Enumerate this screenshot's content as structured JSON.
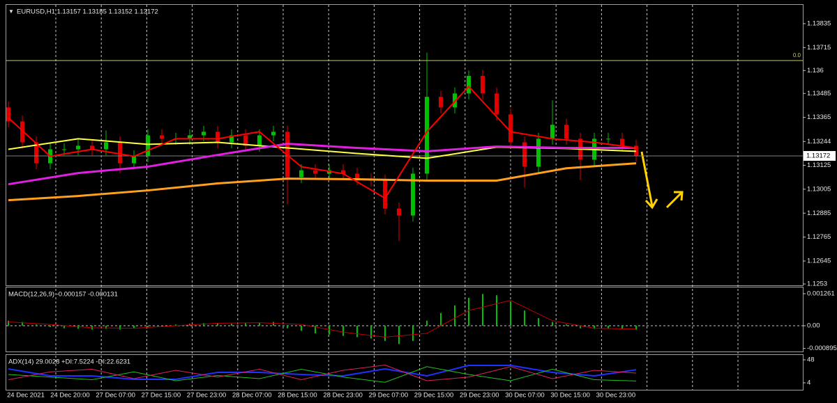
{
  "chart_data": [
    {
      "type": "candlestick",
      "title": "EURUSD,H1  1.13157 1.13185 1.13152 1.13172",
      "up_color": "#00c000",
      "down_color": "#e00000",
      "open": [
        1.13415,
        1.13345,
        1.1324,
        1.13135,
        1.13205,
        1.13205,
        1.13223,
        1.13205,
        1.1324,
        1.13135,
        1.1317,
        1.13275,
        1.13258,
        1.13258,
        1.13275,
        1.13293,
        1.1324,
        1.13275,
        1.13223,
        1.13275,
        1.13293,
        1.13065,
        1.131,
        1.13083,
        1.131,
        1.13083,
        1.13055,
        1.13048,
        1.12908,
        1.12873,
        1.13083,
        1.13468,
        1.13415,
        1.13485,
        1.13573,
        1.13485,
        1.1338,
        1.1324,
        1.13118,
        1.13258,
        1.13328,
        1.13258,
        1.13153,
        1.13258,
        1.13258,
        1.13223
      ],
      "high": [
        1.13445,
        1.13375,
        1.1327,
        1.13235,
        1.13235,
        1.13253,
        1.13253,
        1.133,
        1.1327,
        1.132,
        1.13305,
        1.13305,
        1.13288,
        1.13305,
        1.13323,
        1.13323,
        1.13305,
        1.13305,
        1.13305,
        1.13323,
        1.13323,
        1.1313,
        1.1313,
        1.1313,
        1.1313,
        1.13113,
        1.13085,
        1.13078,
        1.12938,
        1.13113,
        1.1369,
        1.13498,
        1.13515,
        1.136,
        1.13603,
        1.13515,
        1.1341,
        1.1327,
        1.13288,
        1.1345,
        1.13358,
        1.13288,
        1.13288,
        1.13288,
        1.13288,
        1.13253
      ],
      "low": [
        1.13315,
        1.1321,
        1.13105,
        1.13105,
        1.13175,
        1.13175,
        1.13175,
        1.13175,
        1.13085,
        1.13105,
        1.1314,
        1.13228,
        1.13228,
        1.13228,
        1.13245,
        1.1321,
        1.1321,
        1.13193,
        1.13193,
        1.13245,
        1.1293,
        1.13035,
        1.13053,
        1.13053,
        1.13053,
        1.13025,
        1.13018,
        1.12878,
        1.12745,
        1.12843,
        1.13053,
        1.13385,
        1.13385,
        1.13455,
        1.13455,
        1.1335,
        1.1321,
        1.13013,
        1.13088,
        1.13228,
        1.13228,
        1.1305,
        1.13123,
        1.13228,
        1.13193,
        1.13142
      ],
      "close": [
        1.13345,
        1.1324,
        1.13135,
        1.13205,
        1.13205,
        1.13223,
        1.13205,
        1.1324,
        1.13135,
        1.1317,
        1.13275,
        1.13258,
        1.13258,
        1.13275,
        1.13293,
        1.1324,
        1.13275,
        1.13223,
        1.13275,
        1.13293,
        1.13065,
        1.131,
        1.13083,
        1.131,
        1.13083,
        1.13055,
        1.13048,
        1.12908,
        1.12873,
        1.13083,
        1.13468,
        1.13415,
        1.13485,
        1.13573,
        1.13485,
        1.1338,
        1.1324,
        1.13118,
        1.13258,
        1.13328,
        1.13258,
        1.13153,
        1.13258,
        1.13258,
        1.13223,
        1.13172
      ],
      "lines": [
        {
          "color": "#ffa020",
          "width": 3,
          "x": [
            0,
            5,
            10,
            15,
            20,
            25,
            30,
            35,
            40,
            45
          ],
          "values": [
            1.1295,
            1.12971,
            1.12999,
            1.13034,
            1.13058,
            1.13055,
            1.13048,
            1.13048,
            1.1311,
            1.13135
          ]
        },
        {
          "color": "#ffff40",
          "width": 2,
          "x": [
            0,
            5,
            10,
            15,
            20,
            25,
            30,
            35,
            40,
            45
          ],
          "values": [
            1.13205,
            1.13258,
            1.1323,
            1.1324,
            1.13212,
            1.13184,
            1.1316,
            1.13216,
            1.13209,
            1.13195
          ]
        },
        {
          "color": "#e020e0",
          "width": 3,
          "x": [
            0,
            5,
            10,
            15,
            20,
            25,
            30,
            35,
            40,
            45
          ],
          "values": [
            1.1303,
            1.13086,
            1.13118,
            1.13177,
            1.13233,
            1.13212,
            1.13195,
            1.13219,
            1.13212,
            1.13212
          ]
        },
        {
          "color": "#ff0000",
          "width": 2,
          "x": [
            0,
            3,
            6,
            9,
            12,
            15,
            18,
            21,
            24,
            27,
            30,
            33,
            36,
            39,
            42,
            45
          ],
          "values": [
            1.13363,
            1.1317,
            1.13205,
            1.1317,
            1.13258,
            1.13258,
            1.13293,
            1.13118,
            1.13083,
            1.1296,
            1.13293,
            1.1352,
            1.13293,
            1.13258,
            1.1324,
            1.13212
          ]
        }
      ],
      "levels": [
        {
          "value": 1.1365,
          "label": "0.0",
          "color": "#c8c870"
        }
      ],
      "last_price": 1.13172,
      "ylim": [
        1.12523,
        1.13929
      ],
      "yticks": [
        1.13835,
        1.13715,
        1.136,
        1.13485,
        1.13365,
        1.13244,
        1.13125,
        1.13005,
        1.12885,
        1.12765,
        1.12645,
        1.1253
      ],
      "x_labels": [
        "24 Dec 2021",
        "24 Dec 20:00",
        "27 Dec 07:00",
        "27 Dec 15:00",
        "27 Dec 23:00",
        "28 Dec 07:00",
        "28 Dec 15:00",
        "28 Dec 23:00",
        "29 Dec 07:00",
        "29 Dec 15:00",
        "29 Dec 23:00",
        "30 Dec 07:00",
        "30 Dec 15:00",
        "30 Dec 23:00"
      ]
    },
    {
      "type": "bar",
      "title": "MACD(12,26,9) -0.000157 -0.000131",
      "color": "#00c000",
      "values": [
        0.0002,
        0.00015,
        5e-05,
        -5e-05,
        -0.0001,
        -0.00012,
        -0.00015,
        -0.00012,
        -0.00015,
        -0.0001,
        -5e-05,
        2e-05,
        5e-05,
        8e-05,
        0.0001,
        0.0001,
        8e-05,
        0.0001,
        0.00012,
        0.00015,
        -0.0001,
        -0.0002,
        -0.0003,
        -0.00035,
        -0.0004,
        -0.00045,
        -0.0005,
        -0.0006,
        -0.00072,
        -0.0006,
        0.0002,
        0.0005,
        0.0008,
        0.0011,
        0.00125,
        0.0012,
        0.00095,
        0.0006,
        0.0003,
        0.00015,
        5e-05,
        -0.0001,
        -0.00012,
        -0.0001,
        -0.00012,
        -0.000157
      ],
      "lines": [
        {
          "color": "#c00000",
          "width": 1,
          "x": [
            0,
            3,
            6,
            9,
            12,
            15,
            18,
            21,
            24,
            27,
            30,
            33,
            36,
            39,
            42,
            45
          ],
          "values": [
            0.00015,
            5e-05,
            -8e-05,
            -0.0001,
            0.0,
            0.0001,
            0.00012,
            5e-05,
            -0.00025,
            -0.00045,
            -0.0003,
            0.0006,
            0.001,
            0.0002,
            -0.0001,
            -0.000131
          ]
        }
      ],
      "ylim": [
        -0.001014,
        0.001508
      ],
      "yticks": [
        0.001261,
        {
          "value": 0,
          "label": "0.00"
        },
        -0.000895
      ]
    },
    {
      "type": "line",
      "title": "ADX(14) 29.0028 +DI:7.5224 -DI:22.6231",
      "lines": [
        {
          "color": "#2030ff",
          "width": 2,
          "x": [
            0,
            3,
            6,
            9,
            12,
            15,
            18,
            21,
            24,
            27,
            30,
            33,
            36,
            39,
            42,
            45
          ],
          "values": [
            30.7,
            17.3,
            17.3,
            10.7,
            10.7,
            24,
            24,
            20,
            17.3,
            30.7,
            17.3,
            37.3,
            37.3,
            24,
            17.3,
            29.0
          ]
        },
        {
          "color": "#20c020",
          "width": 1,
          "x": [
            0,
            3,
            6,
            9,
            12,
            15,
            18,
            21,
            24,
            27,
            30,
            33,
            36,
            39,
            42,
            45
          ],
          "values": [
            20,
            15,
            10,
            25,
            8,
            18,
            12,
            30,
            15,
            5,
            35,
            20,
            8,
            30,
            10,
            7.5
          ]
        },
        {
          "color": "#e02060",
          "width": 1,
          "x": [
            0,
            3,
            6,
            9,
            12,
            15,
            18,
            21,
            24,
            27,
            30,
            33,
            36,
            39,
            42,
            45
          ],
          "values": [
            10,
            25,
            30,
            12,
            28,
            15,
            30,
            10,
            28,
            38,
            8,
            15,
            35,
            12,
            28,
            22.6
          ]
        }
      ],
      "ylim": [
        -9.3,
        57.3
      ],
      "yticks": [
        48,
        4
      ]
    }
  ]
}
